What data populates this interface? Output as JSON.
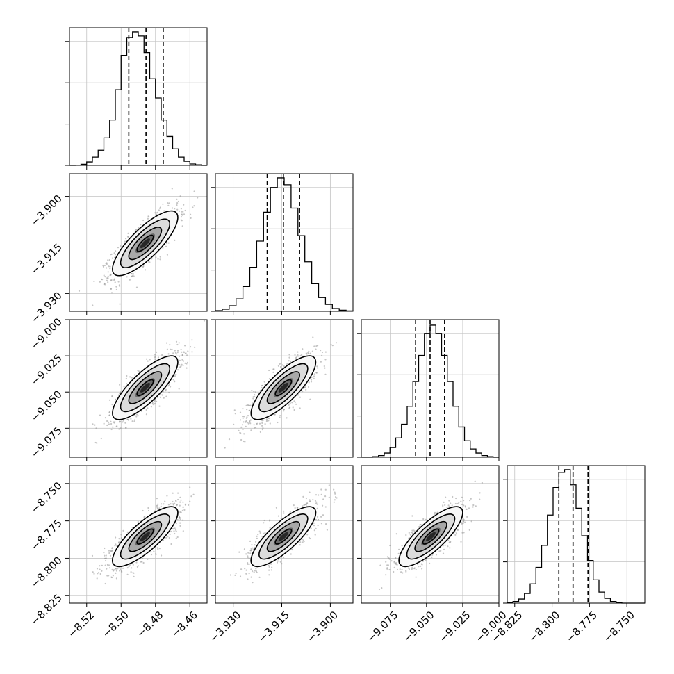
{
  "chart_data": {
    "type": "corner",
    "parameters": [
      {
        "range": [
          -8.53,
          -8.45
        ],
        "ticks": [
          -8.52,
          -8.5,
          -8.48,
          -8.46
        ],
        "tick_labels": [
          "−8.52",
          "−8.50",
          "−8.48",
          "−8.46"
        ],
        "mean": -8.486,
        "sigma": 0.0095,
        "quantiles": [
          -8.4955,
          -8.4855,
          -8.4755
        ]
      },
      {
        "range": [
          -3.9355,
          -3.893
        ],
        "ticks": [
          -3.93,
          -3.915,
          -3.9
        ],
        "tick_labels": [
          "−3.930",
          "−3.915",
          "−3.900"
        ],
        "mean": -3.9145,
        "sigma": 0.005,
        "quantiles": [
          -3.9195,
          -3.9145,
          -3.9095
        ]
      },
      {
        "range": [
          -9.095,
          -9.0
        ],
        "ticks": [
          -9.075,
          -9.05,
          -9.025,
          -9.0
        ],
        "tick_labels": [
          "−9.075",
          "−9.050",
          "−9.025",
          "−9.000"
        ],
        "mean": -9.047,
        "sigma": 0.011,
        "quantiles": [
          -9.0575,
          -9.0475,
          -9.0375
        ]
      },
      {
        "range": [
          -8.83,
          -8.738
        ],
        "ticks": [
          -8.825,
          -8.8,
          -8.775,
          -8.75
        ],
        "tick_labels": [
          "−8.825",
          "−8.800",
          "−8.775",
          "−8.750"
        ],
        "mean": -8.7855,
        "sigma": 0.01,
        "quantiles": [
          -8.7955,
          -8.786,
          -8.776
        ]
      }
    ],
    "histograms": [
      [
        0,
        0.002,
        0.008,
        0.025,
        0.06,
        0.11,
        0.2,
        0.33,
        0.55,
        0.8,
        0.93,
        0.97,
        0.94,
        0.82,
        0.63,
        0.49,
        0.33,
        0.21,
        0.12,
        0.06,
        0.03,
        0.01,
        0.004,
        0
      ],
      [
        0.005,
        0.015,
        0.04,
        0.09,
        0.18,
        0.32,
        0.51,
        0.72,
        0.9,
        0.97,
        0.92,
        0.75,
        0.55,
        0.36,
        0.2,
        0.1,
        0.05,
        0.02,
        0.008,
        0.003
      ],
      [
        0,
        0,
        0.004,
        0.012,
        0.03,
        0.07,
        0.14,
        0.24,
        0.37,
        0.55,
        0.74,
        0.9,
        0.96,
        0.9,
        0.74,
        0.55,
        0.37,
        0.22,
        0.12,
        0.06,
        0.03,
        0.012,
        0.004,
        0
      ],
      [
        0.004,
        0.012,
        0.03,
        0.07,
        0.14,
        0.26,
        0.42,
        0.64,
        0.84,
        0.95,
        0.97,
        0.86,
        0.69,
        0.49,
        0.31,
        0.17,
        0.08,
        0.035,
        0.012,
        0.004,
        0,
        0,
        0,
        0
      ]
    ],
    "correlation": 0.8,
    "scatter_points_per_panel": 1400,
    "contour_levels_sigma": [
      0.5,
      1.0,
      1.5,
      2.0
    ],
    "grid": true,
    "colors": {
      "scatter": "#8c8c8c",
      "contour": "#000000",
      "hist": "#000000",
      "grid": "#c4c4c4"
    }
  }
}
